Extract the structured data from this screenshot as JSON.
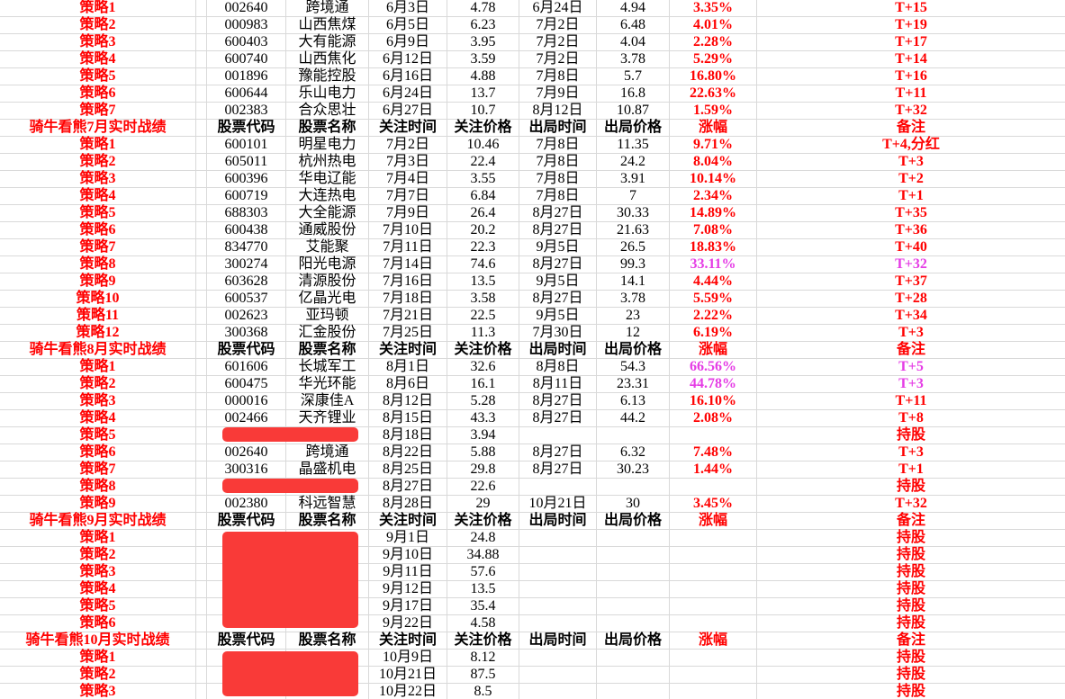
{
  "colors": {
    "strategy_red": "#ff0000",
    "highlight_magenta": "#e53ce5",
    "redaction_red": "#f93a38",
    "error_triangle_green": "#1d8c1d",
    "gridline": "#d9d9d9"
  },
  "column_headers": {
    "code": "股票代码",
    "name": "股票名称",
    "watch_time": "关注时间",
    "watch_price": "关注价格",
    "exit_time": "出局时间",
    "exit_price": "出局价格",
    "pct": "涨幅",
    "note": "备注"
  },
  "sections": [
    {
      "title": "",
      "rows": [
        {
          "label": "策略1",
          "code": "002640",
          "name": "跨境通",
          "watch_time": "6月3日",
          "watch_price": "4.78",
          "exit_time": "6月24日",
          "exit_price": "4.94",
          "pct": "3.35%",
          "note": "T+15"
        },
        {
          "label": "策略2",
          "code": "000983",
          "name": "山西焦煤",
          "watch_time": "6月5日",
          "watch_price": "6.23",
          "exit_time": "7月2日",
          "exit_price": "6.48",
          "pct": "4.01%",
          "note": "T+19"
        },
        {
          "label": "策略3",
          "code": "600403",
          "name": "大有能源",
          "watch_time": "6月9日",
          "watch_price": "3.95",
          "exit_time": "7月2日",
          "exit_price": "4.04",
          "pct": "2.28%",
          "note": "T+17"
        },
        {
          "label": "策略4",
          "code": "600740",
          "name": "山西焦化",
          "watch_time": "6月12日",
          "watch_price": "3.59",
          "exit_time": "7月2日",
          "exit_price": "3.78",
          "pct": "5.29%",
          "note": "T+14"
        },
        {
          "label": "策略5",
          "code": "001896",
          "name": "豫能控股",
          "watch_time": "6月16日",
          "watch_price": "4.88",
          "exit_time": "7月8日",
          "exit_price": "5.7",
          "pct": "16.80%",
          "note": "T+16"
        },
        {
          "label": "策略6",
          "code": "600644",
          "name": "乐山电力",
          "watch_time": "6月24日",
          "watch_price": "13.7",
          "exit_time": "7月9日",
          "exit_price": "16.8",
          "pct": "22.63%",
          "note": "T+11"
        },
        {
          "label": "策略7",
          "code": "002383",
          "name": "合众思壮",
          "watch_time": "6月27日",
          "watch_price": "10.7",
          "exit_time": "8月12日",
          "exit_price": "10.87",
          "pct": "1.59%",
          "note": "T+32"
        }
      ]
    },
    {
      "title": "骑牛看熊7月实时战绩",
      "rows": [
        {
          "label": "策略1",
          "code": "600101",
          "name": "明星电力",
          "watch_time": "7月2日",
          "watch_price": "10.46",
          "exit_time": "7月8日",
          "exit_price": "11.35",
          "pct": "9.71%",
          "note": "T+4,分红"
        },
        {
          "label": "策略2",
          "code": "605011",
          "name": "杭州热电",
          "watch_time": "7月3日",
          "watch_price": "22.4",
          "exit_time": "7月8日",
          "exit_price": "24.2",
          "pct": "8.04%",
          "note": "T+3"
        },
        {
          "label": "策略3",
          "code": "600396",
          "name": "华电辽能",
          "watch_time": "7月4日",
          "watch_price": "3.55",
          "exit_time": "7月8日",
          "exit_price": "3.91",
          "pct": "10.14%",
          "note": "T+2"
        },
        {
          "label": "策略4",
          "code": "600719",
          "name": "大连热电",
          "watch_time": "7月7日",
          "watch_price": "6.84",
          "exit_time": "7月8日",
          "exit_price": "7",
          "pct": "2.34%",
          "note": "T+1"
        },
        {
          "label": "策略5",
          "code": "688303",
          "name": "大全能源",
          "watch_time": "7月9日",
          "watch_price": "26.4",
          "exit_time": "8月27日",
          "exit_price": "30.33",
          "pct": "14.89%",
          "note": "T+35"
        },
        {
          "label": "策略6",
          "code": "600438",
          "name": "通威股份",
          "watch_time": "7月10日",
          "watch_price": "20.2",
          "exit_time": "8月27日",
          "exit_price": "21.63",
          "pct": "7.08%",
          "note": "T+36"
        },
        {
          "label": "策略7",
          "code": "834770",
          "name": "艾能聚",
          "watch_time": "7月11日",
          "watch_price": "22.3",
          "exit_time": "9月5日",
          "exit_price": "26.5",
          "pct": "18.83%",
          "note": "T+40"
        },
        {
          "label": "策略8",
          "code": "300274",
          "name": "阳光电源",
          "watch_time": "7月14日",
          "watch_price": "74.6",
          "exit_time": "8月27日",
          "exit_price": "99.3",
          "pct": "33.11%",
          "note": "T+32",
          "highlight": true
        },
        {
          "label": "策略9",
          "code": "603628",
          "name": "清源股份",
          "watch_time": "7月16日",
          "watch_price": "13.5",
          "exit_time": "9月5日",
          "exit_price": "14.1",
          "pct": "4.44%",
          "note": "T+37"
        },
        {
          "label": "策略10",
          "code": "600537",
          "name": "亿晶光电",
          "watch_time": "7月18日",
          "watch_price": "3.58",
          "exit_time": "8月27日",
          "exit_price": "3.78",
          "pct": "5.59%",
          "note": "T+28"
        },
        {
          "label": "策略11",
          "code": "002623",
          "name": "亚玛顿",
          "watch_time": "7月21日",
          "watch_price": "22.5",
          "exit_time": "9月5日",
          "exit_price": "23",
          "pct": "2.22%",
          "note": "T+34"
        },
        {
          "label": "策略12",
          "code": "300368",
          "name": "汇金股份",
          "watch_time": "7月25日",
          "watch_price": "11.3",
          "exit_time": "7月30日",
          "exit_price": "12",
          "pct": "6.19%",
          "note": "T+3"
        }
      ]
    },
    {
      "title": "骑牛看熊8月实时战绩",
      "rows": [
        {
          "label": "策略1",
          "code": "601606",
          "name": "长城军工",
          "watch_time": "8月1日",
          "watch_price": "32.6",
          "exit_time": "8月8日",
          "exit_price": "54.3",
          "pct": "66.56%",
          "note": "T+5",
          "highlight": true
        },
        {
          "label": "策略2",
          "code": "600475",
          "name": "华光环能",
          "watch_time": "8月6日",
          "watch_price": "16.1",
          "exit_time": "8月11日",
          "exit_price": "23.31",
          "pct": "44.78%",
          "note": "T+3",
          "highlight": true
        },
        {
          "label": "策略3",
          "code": "000016",
          "name": "深康佳A",
          "watch_time": "8月12日",
          "watch_price": "5.28",
          "exit_time": "8月27日",
          "exit_price": "6.13",
          "pct": "16.10%",
          "note": "T+11"
        },
        {
          "label": "策略4",
          "code": "002466",
          "name": "天齐锂业",
          "watch_time": "8月15日",
          "watch_price": "43.3",
          "exit_time": "8月27日",
          "exit_price": "44.2",
          "pct": "2.08%",
          "note": "T+8"
        },
        {
          "label": "策略5",
          "code": "",
          "name": "",
          "watch_time": "8月18日",
          "watch_price": "3.94",
          "exit_time": "",
          "exit_price": "",
          "pct": "",
          "note": "持股",
          "redacted": true
        },
        {
          "label": "策略6",
          "code": "002640",
          "name": "跨境通",
          "watch_time": "8月22日",
          "watch_price": "5.88",
          "exit_time": "8月27日",
          "exit_price": "6.32",
          "pct": "7.48%",
          "note": "T+3"
        },
        {
          "label": "策略7",
          "code": "300316",
          "name": "晶盛机电",
          "watch_time": "8月25日",
          "watch_price": "29.8",
          "exit_time": "8月27日",
          "exit_price": "30.23",
          "pct": "1.44%",
          "note": "T+1"
        },
        {
          "label": "策略8",
          "code": "",
          "name": "",
          "watch_time": "8月27日",
          "watch_price": "22.6",
          "exit_time": "",
          "exit_price": "",
          "pct": "",
          "note": "持股",
          "redacted": true
        },
        {
          "label": "策略9",
          "code": "002380",
          "name": "科远智慧",
          "watch_time": "8月28日",
          "watch_price": "29",
          "exit_time": "10月21日",
          "exit_price": "30",
          "pct": "3.45%",
          "note": "T+32"
        }
      ]
    },
    {
      "title": "骑牛看熊9月实时战绩",
      "redacted_block": true,
      "rows": [
        {
          "label": "策略1",
          "code": "",
          "name": "",
          "watch_time": "9月1日",
          "watch_price": "24.8",
          "exit_time": "",
          "exit_price": "",
          "pct": "",
          "note": "持股"
        },
        {
          "label": "策略2",
          "code": "",
          "name": "",
          "watch_time": "9月10日",
          "watch_price": "34.88",
          "exit_time": "",
          "exit_price": "",
          "pct": "",
          "note": "持股"
        },
        {
          "label": "策略3",
          "code": "",
          "name": "",
          "watch_time": "9月11日",
          "watch_price": "57.6",
          "exit_time": "",
          "exit_price": "",
          "pct": "",
          "note": "持股"
        },
        {
          "label": "策略4",
          "code": "",
          "name": "",
          "watch_time": "9月12日",
          "watch_price": "13.5",
          "exit_time": "",
          "exit_price": "",
          "pct": "",
          "note": "持股"
        },
        {
          "label": "策略5",
          "code": "",
          "name": "",
          "watch_time": "9月17日",
          "watch_price": "35.4",
          "exit_time": "",
          "exit_price": "",
          "pct": "",
          "note": "持股"
        },
        {
          "label": "策略6",
          "code": "",
          "name": "",
          "watch_time": "9月22日",
          "watch_price": "4.58",
          "exit_time": "",
          "exit_price": "",
          "pct": "",
          "note": "持股"
        }
      ]
    },
    {
      "title": "骑牛看熊10月实时战绩",
      "redacted_block": true,
      "rows": [
        {
          "label": "策略1",
          "code": "",
          "name": "",
          "watch_time": "10月9日",
          "watch_price": "8.12",
          "exit_time": "",
          "exit_price": "",
          "pct": "",
          "note": "持股"
        },
        {
          "label": "策略2",
          "code": "",
          "name": "",
          "watch_time": "10月21日",
          "watch_price": "87.5",
          "exit_time": "",
          "exit_price": "",
          "pct": "",
          "note": "持股"
        },
        {
          "label": "策略3",
          "code": "",
          "name": "",
          "watch_time": "10月22日",
          "watch_price": "8.5",
          "exit_time": "",
          "exit_price": "",
          "pct": "",
          "note": "持股"
        }
      ]
    }
  ]
}
